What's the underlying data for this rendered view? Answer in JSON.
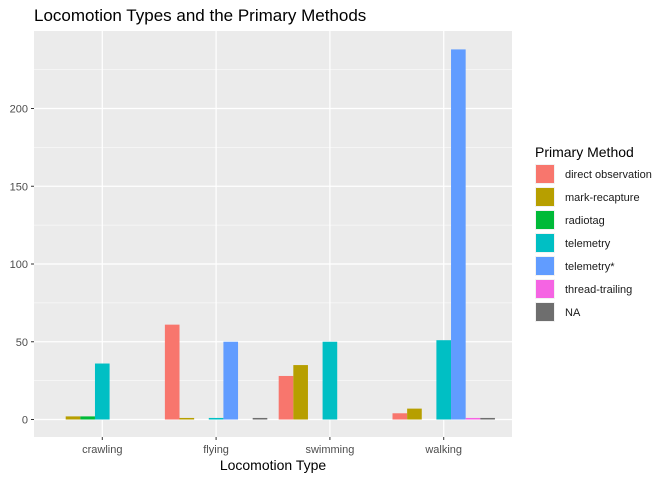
{
  "chart_data": {
    "type": "bar",
    "title": "Locomotion Types and the Primary Methods",
    "xlabel": "Locomotion Type",
    "ylabel": "",
    "categories": [
      "crawling",
      "flying",
      "swimming",
      "walking"
    ],
    "ylim": [
      0,
      250
    ],
    "yticks": [
      0,
      50,
      100,
      150,
      200
    ],
    "grid": true,
    "legend": {
      "title": "Primary Method",
      "position": "right"
    },
    "series": [
      {
        "name": "direct observation",
        "color": "#F8766D",
        "values": [
          null,
          61,
          28,
          4
        ]
      },
      {
        "name": "mark-recapture",
        "color": "#B79F00",
        "values": [
          2,
          1,
          35,
          7
        ]
      },
      {
        "name": "radiotag",
        "color": "#00BA38",
        "values": [
          2,
          null,
          null,
          null
        ]
      },
      {
        "name": "telemetry",
        "color": "#00BFC4",
        "values": [
          36,
          1,
          50,
          51
        ]
      },
      {
        "name": "telemetry*",
        "color": "#619CFF",
        "values": [
          null,
          50,
          null,
          238
        ]
      },
      {
        "name": "thread-trailing",
        "color": "#F564E3",
        "values": [
          null,
          null,
          null,
          1
        ]
      },
      {
        "name": "NA",
        "color": "#6E6E6E",
        "values": [
          null,
          1,
          null,
          1
        ]
      }
    ]
  }
}
